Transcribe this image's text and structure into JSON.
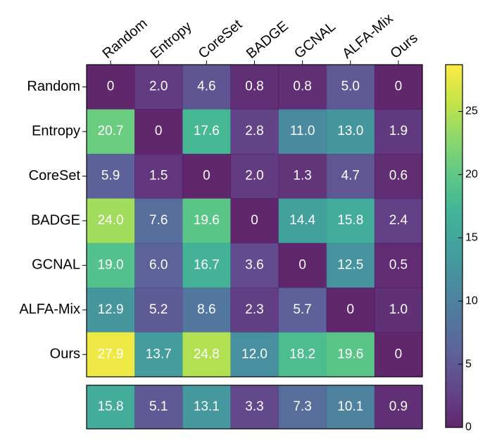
{
  "chart_data": {
    "type": "heatmap",
    "x_categories": [
      "Random",
      "Entropy",
      "CoreSet",
      "BADGE",
      "GCNAL",
      "ALFA-Mix",
      "Ours"
    ],
    "y_categories": [
      "Random",
      "Entropy",
      "CoreSet",
      "BADGE",
      "GCNAL",
      "ALFA-Mix",
      "Ours"
    ],
    "values": [
      [
        0,
        2.0,
        4.6,
        0.8,
        0.8,
        5.0,
        0
      ],
      [
        20.7,
        0,
        17.6,
        2.8,
        11.0,
        13.0,
        1.9
      ],
      [
        5.9,
        1.5,
        0,
        2.0,
        1.3,
        4.7,
        0.6
      ],
      [
        24.0,
        7.6,
        19.6,
        0,
        14.4,
        15.8,
        2.4
      ],
      [
        19.0,
        6.0,
        16.7,
        3.6,
        0,
        12.5,
        0.5
      ],
      [
        12.9,
        5.2,
        8.6,
        2.3,
        5.7,
        0,
        1.0
      ],
      [
        27.9,
        13.7,
        24.8,
        12.0,
        18.2,
        19.6,
        0
      ]
    ],
    "value_labels": [
      [
        "0",
        "2.0",
        "4.6",
        "0.8",
        "0.8",
        "5.0",
        "0"
      ],
      [
        "20.7",
        "0",
        "17.6",
        "2.8",
        "11.0",
        "13.0",
        "1.9"
      ],
      [
        "5.9",
        "1.5",
        "0",
        "2.0",
        "1.3",
        "4.7",
        "0.6"
      ],
      [
        "24.0",
        "7.6",
        "19.6",
        "0",
        "14.4",
        "15.8",
        "2.4"
      ],
      [
        "19.0",
        "6.0",
        "16.7",
        "3.6",
        "0",
        "12.5",
        "0.5"
      ],
      [
        "12.9",
        "5.2",
        "8.6",
        "2.3",
        "5.7",
        "0",
        "1.0"
      ],
      [
        "27.9",
        "13.7",
        "24.8",
        "12.0",
        "18.2",
        "19.6",
        "0"
      ]
    ],
    "summary_values": [
      15.8,
      5.1,
      13.1,
      3.3,
      7.3,
      10.1,
      0.9
    ],
    "colormap": "viridis",
    "clim": [
      0,
      28.7
    ],
    "cticks": [
      0,
      5,
      10,
      15,
      20,
      25
    ]
  }
}
